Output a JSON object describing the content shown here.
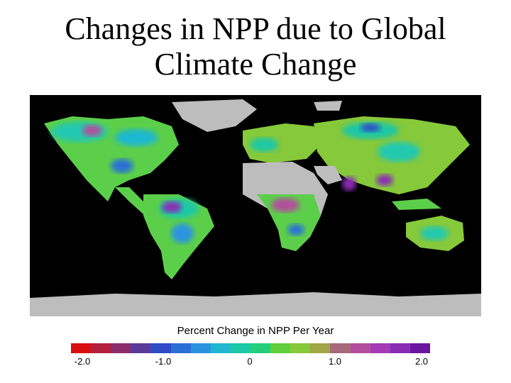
{
  "slide": {
    "title_line1": "Changes in NPP due to Global",
    "title_line2": "Climate Change"
  },
  "map": {
    "legend_title": "Percent Change in NPP Per Year",
    "ticks": [
      "-2.0",
      "-1.0",
      "0",
      "1.0",
      "2.0"
    ],
    "colors": {
      "ocean": "#000000",
      "no_data": "#bdbdbd",
      "scale": [
        "#d80f0f",
        "#b31f3c",
        "#8a2d6a",
        "#5a3a98",
        "#2f4bc6",
        "#2a6fd6",
        "#2a94e0",
        "#1fb7d0",
        "#1dc8a6",
        "#24cf7c",
        "#5fcf3d",
        "#86c93a",
        "#a2a646",
        "#a66a7a",
        "#b24f9c",
        "#a23bb5",
        "#8a2bb5",
        "#6a16a0"
      ]
    }
  }
}
